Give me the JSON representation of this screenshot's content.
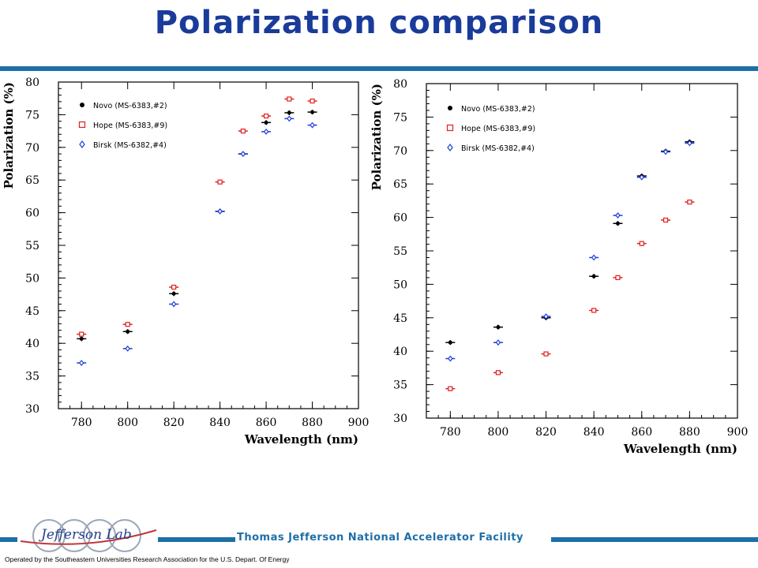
{
  "page": {
    "title": "Polarization comparison",
    "lab_name": "Thomas Jefferson National Accelerator Facility",
    "operated_by": "Operated by the Southeastern Universities Research Association for the U.S. Depart. Of Energy",
    "logo_text": "Jefferson Lab",
    "colors": {
      "title": "#1a3b9a",
      "rule": "#1d6fa8"
    }
  },
  "chart_data": [
    {
      "type": "scatter",
      "title": "",
      "xlabel": "Wavelength (nm)",
      "ylabel": "Polarization (%)",
      "xlim": [
        770,
        900
      ],
      "ylim": [
        30,
        80
      ],
      "xticks": [
        780,
        800,
        820,
        840,
        860,
        880,
        900
      ],
      "yticks": [
        30,
        35,
        40,
        45,
        50,
        55,
        60,
        65,
        70,
        75,
        80
      ],
      "grid": false,
      "legend": "top-left",
      "series": [
        {
          "name": "Novo (MS-6383,#2)",
          "color": "#000000",
          "marker": "filled-circle",
          "x": [
            780,
            800,
            820,
            840,
            850,
            860,
            870,
            880
          ],
          "y": [
            40.7,
            41.8,
            47.6,
            60.2,
            69.0,
            73.8,
            75.3,
            75.4
          ]
        },
        {
          "name": "Hope (MS-6383,#9)",
          "color": "#e02020",
          "marker": "open-square",
          "x": [
            780,
            800,
            820,
            840,
            850,
            860,
            870,
            880
          ],
          "y": [
            41.4,
            42.9,
            48.6,
            64.7,
            72.5,
            74.8,
            77.4,
            77.1
          ]
        },
        {
          "name": "Birsk (MS-6382,#4)",
          "color": "#1f3fd6",
          "marker": "open-diamond",
          "x": [
            780,
            800,
            820,
            840,
            850,
            860,
            870,
            880
          ],
          "y": [
            37.0,
            39.2,
            46.0,
            60.2,
            69.0,
            72.4,
            74.4,
            73.4
          ]
        }
      ]
    },
    {
      "type": "scatter",
      "title": "",
      "xlabel": "Wavelength (nm)",
      "ylabel": "Polarization (%)",
      "xlim": [
        770,
        900
      ],
      "ylim": [
        30,
        80
      ],
      "xticks": [
        780,
        800,
        820,
        840,
        860,
        880,
        900
      ],
      "yticks": [
        30,
        35,
        40,
        45,
        50,
        55,
        60,
        65,
        70,
        75,
        80
      ],
      "grid": false,
      "legend": "top-left",
      "series": [
        {
          "name": "Novo (MS-6383,#2)",
          "color": "#000000",
          "marker": "filled-circle",
          "x": [
            780,
            800,
            820,
            840,
            850,
            860,
            870,
            880
          ],
          "y": [
            41.3,
            43.6,
            45.0,
            51.2,
            59.1,
            66.2,
            69.9,
            71.3
          ]
        },
        {
          "name": "Hope (MS-6383,#9)",
          "color": "#e02020",
          "marker": "open-square",
          "x": [
            780,
            800,
            820,
            840,
            850,
            860,
            870,
            880
          ],
          "y": [
            34.4,
            36.8,
            39.6,
            46.1,
            51.0,
            56.1,
            59.6,
            62.3
          ]
        },
        {
          "name": "Birsk (MS-6382,#4)",
          "color": "#1f3fd6",
          "marker": "open-diamond",
          "x": [
            780,
            800,
            820,
            840,
            850,
            860,
            870,
            880
          ],
          "y": [
            38.9,
            41.3,
            45.2,
            54.0,
            60.3,
            66.0,
            69.8,
            71.1
          ]
        }
      ]
    }
  ]
}
